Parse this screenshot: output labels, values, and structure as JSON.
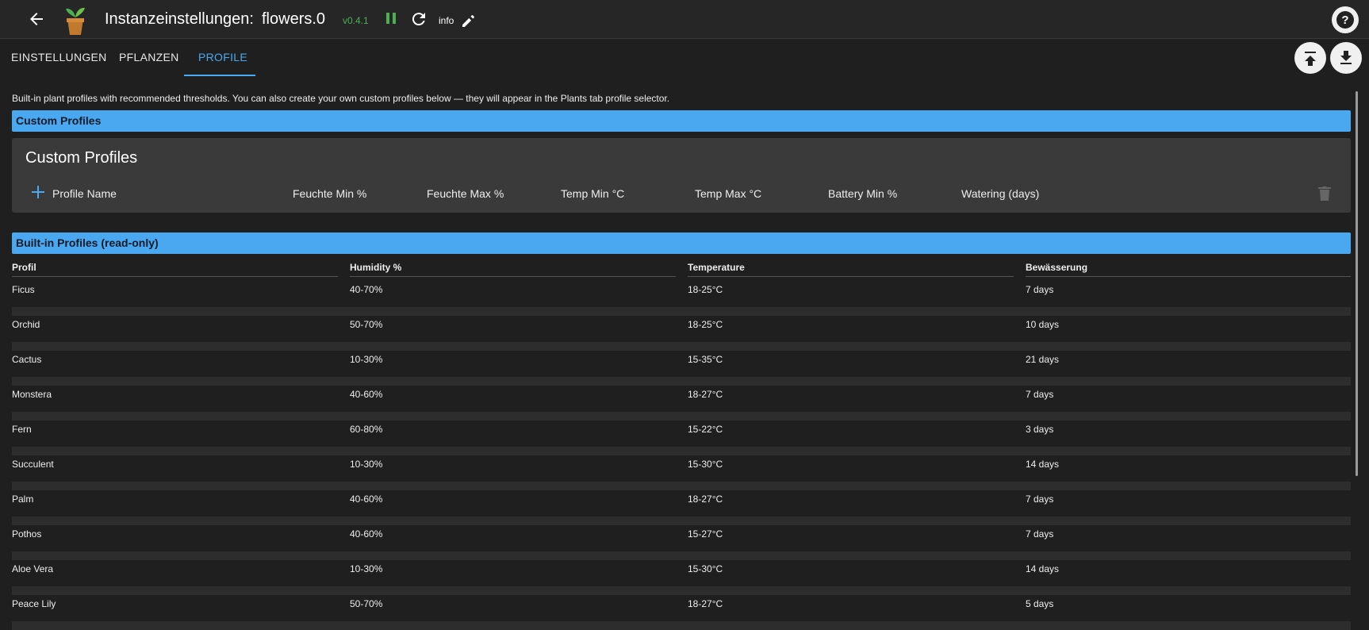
{
  "header": {
    "title": "Instanzeinstellungen:",
    "instance": "flowers.0",
    "version": "v0.4.1",
    "info": "info"
  },
  "tabs": [
    "EINSTELLUNGEN",
    "PFLANZEN",
    "PROFILE"
  ],
  "description": "Built-in plant profiles with recommended thresholds. You can also create your own custom profiles below — they will appear in the Plants tab profile selector.",
  "custom_section": {
    "heading": "Custom Profiles",
    "card_title": "Custom Profiles",
    "columns": [
      "Profile Name",
      "Feuchte Min %",
      "Feuchte Max %",
      "Temp Min °C",
      "Temp Max °C",
      "Battery Min %",
      "Watering (days)"
    ]
  },
  "builtin_section": {
    "heading": "Built-in Profiles (read-only)",
    "table": {
      "columns": [
        "Profil",
        "Humidity %",
        "Temperature",
        "Bewässerung"
      ],
      "rows": [
        [
          "Ficus",
          "40-70%",
          "18-25°C",
          "7 days"
        ],
        [
          "Orchid",
          "50-70%",
          "18-25°C",
          "10 days"
        ],
        [
          "Cactus",
          "10-30%",
          "15-35°C",
          "21 days"
        ],
        [
          "Monstera",
          "40-60%",
          "18-27°C",
          "7 days"
        ],
        [
          "Fern",
          "60-80%",
          "15-22°C",
          "3 days"
        ],
        [
          "Succulent",
          "10-30%",
          "15-30°C",
          "14 days"
        ],
        [
          "Palm",
          "40-60%",
          "18-27°C",
          "7 days"
        ],
        [
          "Pothos",
          "40-60%",
          "15-27°C",
          "7 days"
        ],
        [
          "Aloe Vera",
          "10-30%",
          "15-30°C",
          "14 days"
        ],
        [
          "Peace Lily",
          "50-70%",
          "18-27°C",
          "5 days"
        ]
      ]
    }
  }
}
